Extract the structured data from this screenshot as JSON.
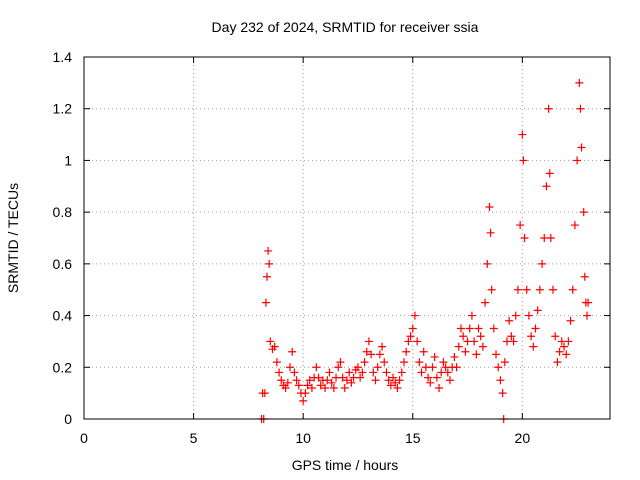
{
  "chart_data": {
    "type": "scatter",
    "title": "Day 232 of 2024, SRMTID for receiver ssia",
    "xlabel": "GPS time / hours",
    "ylabel": "SRMTID / TECUs",
    "xlim": [
      0,
      24
    ],
    "ylim": [
      0,
      1.4
    ],
    "xticks": [
      0,
      5,
      10,
      15,
      20
    ],
    "xtick_labels": [
      "0",
      "5",
      "10",
      "15",
      "20"
    ],
    "yticks": [
      0,
      0.2,
      0.4,
      0.6,
      0.8,
      1.0,
      1.2,
      1.4
    ],
    "ytick_labels": [
      "0",
      "0.2",
      "0.4",
      "0.6",
      "0.8",
      "1",
      "1.2",
      "1.4"
    ],
    "grid": true,
    "marker": "+",
    "series": [
      {
        "name": "SRMTID",
        "color": "#ff0000",
        "points": [
          [
            8.1,
            0.0
          ],
          [
            8.2,
            0.0
          ],
          [
            8.15,
            0.1
          ],
          [
            8.25,
            0.1
          ],
          [
            8.3,
            0.45
          ],
          [
            8.35,
            0.55
          ],
          [
            8.4,
            0.65
          ],
          [
            8.45,
            0.6
          ],
          [
            8.5,
            0.3
          ],
          [
            8.6,
            0.27
          ],
          [
            8.7,
            0.28
          ],
          [
            8.8,
            0.22
          ],
          [
            8.9,
            0.18
          ],
          [
            9.0,
            0.15
          ],
          [
            9.1,
            0.13
          ],
          [
            9.2,
            0.12
          ],
          [
            9.3,
            0.14
          ],
          [
            9.4,
            0.2
          ],
          [
            9.5,
            0.26
          ],
          [
            9.6,
            0.18
          ],
          [
            9.7,
            0.15
          ],
          [
            9.8,
            0.13
          ],
          [
            9.9,
            0.1
          ],
          [
            10.0,
            0.07
          ],
          [
            10.1,
            0.1
          ],
          [
            10.2,
            0.13
          ],
          [
            10.3,
            0.15
          ],
          [
            10.4,
            0.12
          ],
          [
            10.5,
            0.16
          ],
          [
            10.6,
            0.2
          ],
          [
            10.7,
            0.16
          ],
          [
            10.8,
            0.13
          ],
          [
            10.9,
            0.15
          ],
          [
            11.0,
            0.12
          ],
          [
            11.1,
            0.15
          ],
          [
            11.2,
            0.18
          ],
          [
            11.3,
            0.14
          ],
          [
            11.4,
            0.12
          ],
          [
            11.5,
            0.16
          ],
          [
            11.6,
            0.2
          ],
          [
            11.7,
            0.22
          ],
          [
            11.8,
            0.16
          ],
          [
            11.9,
            0.12
          ],
          [
            12.0,
            0.15
          ],
          [
            12.1,
            0.18
          ],
          [
            12.2,
            0.14
          ],
          [
            12.3,
            0.16
          ],
          [
            12.4,
            0.19
          ],
          [
            12.5,
            0.2
          ],
          [
            12.6,
            0.16
          ],
          [
            12.7,
            0.18
          ],
          [
            12.8,
            0.22
          ],
          [
            12.9,
            0.26
          ],
          [
            13.0,
            0.3
          ],
          [
            13.1,
            0.25
          ],
          [
            13.2,
            0.18
          ],
          [
            13.3,
            0.15
          ],
          [
            13.4,
            0.2
          ],
          [
            13.5,
            0.25
          ],
          [
            13.6,
            0.28
          ],
          [
            13.7,
            0.22
          ],
          [
            13.8,
            0.18
          ],
          [
            13.9,
            0.15
          ],
          [
            14.0,
            0.13
          ],
          [
            14.1,
            0.16
          ],
          [
            14.2,
            0.14
          ],
          [
            14.3,
            0.12
          ],
          [
            14.4,
            0.15
          ],
          [
            14.5,
            0.18
          ],
          [
            14.6,
            0.22
          ],
          [
            14.7,
            0.26
          ],
          [
            14.8,
            0.3
          ],
          [
            14.9,
            0.32
          ],
          [
            15.0,
            0.35
          ],
          [
            15.1,
            0.4
          ],
          [
            15.2,
            0.3
          ],
          [
            15.3,
            0.22
          ],
          [
            15.4,
            0.18
          ],
          [
            15.5,
            0.26
          ],
          [
            15.6,
            0.2
          ],
          [
            15.7,
            0.16
          ],
          [
            15.8,
            0.14
          ],
          [
            15.9,
            0.2
          ],
          [
            16.0,
            0.24
          ],
          [
            16.1,
            0.16
          ],
          [
            16.2,
            0.12
          ],
          [
            16.3,
            0.18
          ],
          [
            16.4,
            0.22
          ],
          [
            16.5,
            0.2
          ],
          [
            16.6,
            0.18
          ],
          [
            16.7,
            0.15
          ],
          [
            16.8,
            0.2
          ],
          [
            16.9,
            0.24
          ],
          [
            17.0,
            0.2
          ],
          [
            17.1,
            0.28
          ],
          [
            17.2,
            0.35
          ],
          [
            17.3,
            0.32
          ],
          [
            17.4,
            0.26
          ],
          [
            17.5,
            0.3
          ],
          [
            17.6,
            0.35
          ],
          [
            17.7,
            0.4
          ],
          [
            17.8,
            0.3
          ],
          [
            17.9,
            0.25
          ],
          [
            18.0,
            0.35
          ],
          [
            18.1,
            0.32
          ],
          [
            18.2,
            0.28
          ],
          [
            18.3,
            0.45
          ],
          [
            18.4,
            0.6
          ],
          [
            18.5,
            0.82
          ],
          [
            18.55,
            0.72
          ],
          [
            18.6,
            0.5
          ],
          [
            18.7,
            0.35
          ],
          [
            18.8,
            0.25
          ],
          [
            18.9,
            0.2
          ],
          [
            19.0,
            0.15
          ],
          [
            19.1,
            0.1
          ],
          [
            19.15,
            0.0
          ],
          [
            19.2,
            0.22
          ],
          [
            19.3,
            0.3
          ],
          [
            19.4,
            0.38
          ],
          [
            19.5,
            0.32
          ],
          [
            19.6,
            0.3
          ],
          [
            19.7,
            0.4
          ],
          [
            19.8,
            0.5
          ],
          [
            19.9,
            0.75
          ],
          [
            20.0,
            1.1
          ],
          [
            20.05,
            1.0
          ],
          [
            20.1,
            0.7
          ],
          [
            20.2,
            0.5
          ],
          [
            20.3,
            0.4
          ],
          [
            20.4,
            0.32
          ],
          [
            20.5,
            0.28
          ],
          [
            20.6,
            0.35
          ],
          [
            20.7,
            0.42
          ],
          [
            20.8,
            0.5
          ],
          [
            20.9,
            0.6
          ],
          [
            21.0,
            0.7
          ],
          [
            21.1,
            0.9
          ],
          [
            21.2,
            1.2
          ],
          [
            21.25,
            0.95
          ],
          [
            21.3,
            0.7
          ],
          [
            21.4,
            0.5
          ],
          [
            21.5,
            0.32
          ],
          [
            21.6,
            0.22
          ],
          [
            21.7,
            0.26
          ],
          [
            21.8,
            0.3
          ],
          [
            21.9,
            0.28
          ],
          [
            22.0,
            0.25
          ],
          [
            22.1,
            0.3
          ],
          [
            22.2,
            0.38
          ],
          [
            22.3,
            0.5
          ],
          [
            22.4,
            0.75
          ],
          [
            22.5,
            1.0
          ],
          [
            22.6,
            1.3
          ],
          [
            22.65,
            1.2
          ],
          [
            22.7,
            1.05
          ],
          [
            22.8,
            0.8
          ],
          [
            22.85,
            0.55
          ],
          [
            22.9,
            0.45
          ],
          [
            22.95,
            0.4
          ],
          [
            23.0,
            0.45
          ]
        ]
      }
    ]
  }
}
